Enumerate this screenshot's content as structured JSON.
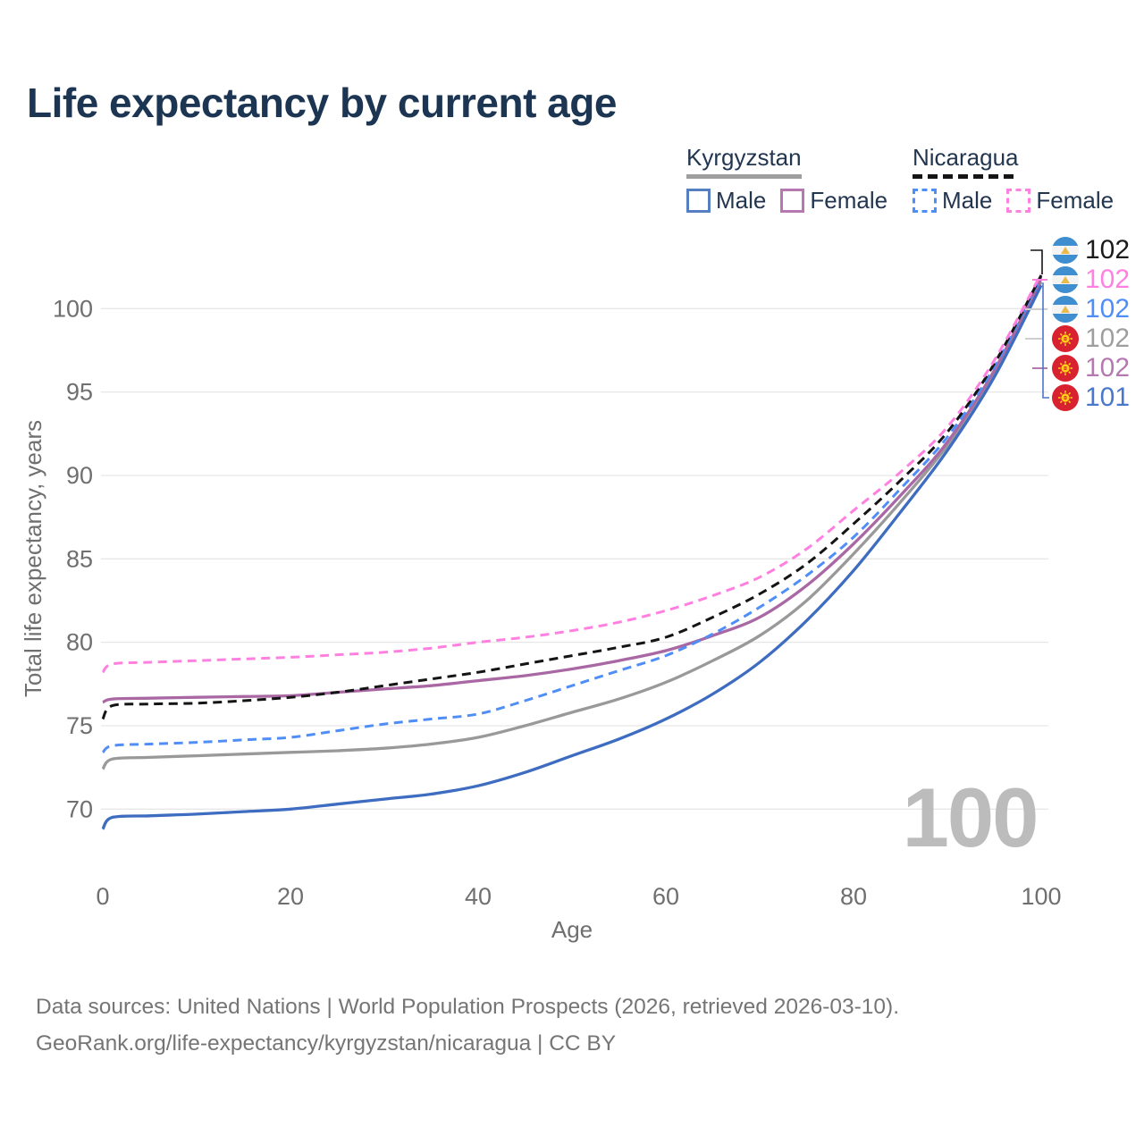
{
  "title": "Life expectancy by current age",
  "legend": {
    "groups": [
      {
        "label": "Kyrgyzstan",
        "line_style": "solid",
        "underline_color": "#9e9e9e",
        "items": [
          {
            "label": "Male",
            "color": "#557fc0",
            "dashed": false
          },
          {
            "label": "Female",
            "color": "#b678b1",
            "dashed": false
          }
        ]
      },
      {
        "label": "Nicaragua",
        "line_style": "dashed",
        "underline_color": "#151515",
        "items": [
          {
            "label": "Male",
            "color": "#4f8ef7",
            "dashed": true
          },
          {
            "label": "Female",
            "color": "#ff80e0",
            "dashed": true
          }
        ]
      }
    ]
  },
  "chart_data": {
    "type": "line",
    "xlabel": "Age",
    "ylabel": "Total life expectancy, years",
    "xlim": [
      0,
      100
    ],
    "ylim": [
      67,
      103
    ],
    "x_ticks": [
      0,
      20,
      40,
      60,
      80,
      100
    ],
    "y_ticks": [
      70,
      75,
      80,
      85,
      90,
      95,
      100
    ],
    "grid": "horizontal-only",
    "watermark": "100",
    "x": [
      0,
      1,
      5,
      10,
      15,
      20,
      25,
      30,
      35,
      40,
      45,
      50,
      55,
      60,
      65,
      70,
      75,
      80,
      85,
      90,
      95,
      100
    ],
    "series": [
      {
        "id": "kyrgyzstan-combined",
        "name": "Kyrgyzstan combined",
        "country": "Kyrgyzstan",
        "sex": "combined",
        "color": "#999999",
        "dashed": false,
        "values": [
          72.4,
          73.0,
          73.1,
          73.2,
          73.3,
          73.4,
          73.5,
          73.65,
          73.9,
          74.3,
          75.0,
          75.8,
          76.6,
          77.6,
          78.9,
          80.4,
          82.5,
          85.3,
          88.4,
          91.8,
          96.1,
          101.6
        ]
      },
      {
        "id": "kyrgyzstan-male",
        "name": "Kyrgyzstan male",
        "country": "Kyrgyzstan",
        "sex": "male",
        "color": "#3d6cc0",
        "dashed": false,
        "values": [
          68.8,
          69.5,
          69.6,
          69.7,
          69.85,
          70.0,
          70.3,
          70.6,
          70.9,
          71.4,
          72.2,
          73.2,
          74.2,
          75.4,
          76.9,
          78.8,
          81.3,
          84.3,
          87.8,
          91.5,
          95.9,
          101.4
        ]
      },
      {
        "id": "kyrgyzstan-female",
        "name": "Kyrgyzstan female",
        "country": "Kyrgyzstan",
        "sex": "female",
        "color": "#a968a4",
        "dashed": false,
        "values": [
          76.4,
          76.6,
          76.65,
          76.7,
          76.75,
          76.8,
          77.0,
          77.2,
          77.4,
          77.7,
          78.0,
          78.4,
          78.9,
          79.5,
          80.4,
          81.5,
          83.4,
          85.9,
          88.8,
          92.0,
          96.3,
          101.8
        ]
      },
      {
        "id": "nicaragua-male",
        "name": "Nicaragua male",
        "country": "Nicaragua",
        "sex": "male",
        "color": "#4f8ef7",
        "dashed": true,
        "values": [
          73.4,
          73.8,
          73.9,
          74.0,
          74.15,
          74.3,
          74.7,
          75.1,
          75.4,
          75.7,
          76.5,
          77.4,
          78.3,
          79.2,
          80.5,
          82.1,
          84.0,
          86.3,
          89.2,
          92.3,
          96.5,
          101.9
        ]
      },
      {
        "id": "nicaragua-combined",
        "name": "Nicaragua combined",
        "country": "Nicaragua",
        "sex": "combined",
        "color": "#141414",
        "dashed": true,
        "values": [
          75.4,
          76.2,
          76.3,
          76.35,
          76.5,
          76.7,
          77.0,
          77.4,
          77.8,
          78.2,
          78.7,
          79.2,
          79.7,
          80.3,
          81.5,
          82.9,
          84.7,
          87.1,
          89.7,
          92.6,
          96.7,
          102.0
        ]
      },
      {
        "id": "nicaragua-female",
        "name": "Nicaragua female",
        "country": "Nicaragua",
        "sex": "female",
        "color": "#ff80e0",
        "dashed": true,
        "values": [
          78.2,
          78.7,
          78.8,
          78.9,
          79.0,
          79.1,
          79.25,
          79.4,
          79.65,
          80.0,
          80.3,
          80.7,
          81.2,
          81.9,
          82.8,
          83.9,
          85.6,
          87.9,
          90.2,
          92.9,
          96.9,
          102.1
        ]
      }
    ],
    "end_labels": [
      {
        "series": "nicaragua-combined",
        "flag": "nicaragua",
        "value": "102",
        "color": "#1a1a1a"
      },
      {
        "series": "nicaragua-female",
        "flag": "nicaragua",
        "value": "102",
        "color": "#ff80e0"
      },
      {
        "series": "nicaragua-male",
        "flag": "nicaragua",
        "value": "102",
        "color": "#4f8ef7"
      },
      {
        "series": "kyrgyzstan-combined",
        "flag": "kyrgyzstan",
        "value": "102",
        "color": "#9e9e9e"
      },
      {
        "series": "kyrgyzstan-female",
        "flag": "kyrgyzstan",
        "value": "102",
        "color": "#b678b1"
      },
      {
        "series": "kyrgyzstan-male",
        "flag": "kyrgyzstan",
        "value": "101",
        "color": "#4a77c9"
      }
    ]
  },
  "footer": {
    "line1": "Data sources: United Nations | World Population Prospects (2026, retrieved 2026-03-10).",
    "line2": "GeoRank.org/life-expectancy/kyrgyzstan/nicaragua | CC BY"
  }
}
